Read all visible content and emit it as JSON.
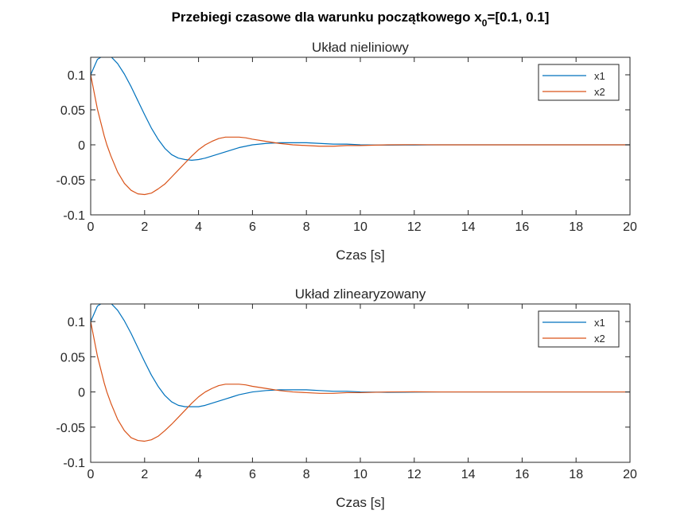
{
  "figure": {
    "title": "Przebiegi czasowe dla warunku początkowego x",
    "title_subscript": "0",
    "title_suffix": "=[0.1, 0.1]"
  },
  "colors": {
    "x1": "#0072BD",
    "x2": "#D95319",
    "axis": "#262626",
    "background": "#ffffff"
  },
  "chart_data": [
    {
      "type": "line",
      "title": "Układ nieliniowy",
      "xlabel": "Czas [s]",
      "ylabel": "",
      "xlim": [
        0,
        20
      ],
      "ylim": [
        -0.1,
        0.125
      ],
      "xticks": [
        0,
        2,
        4,
        6,
        8,
        10,
        12,
        14,
        16,
        18,
        20
      ],
      "xtick_labels": [
        "0",
        "2",
        "4",
        "6",
        "8",
        "10",
        "12",
        "14",
        "16",
        "18",
        "20"
      ],
      "yticks": [
        -0.1,
        -0.05,
        0,
        0.05,
        0.1
      ],
      "ytick_labels": [
        "-0.1",
        "-0.05",
        "0",
        "0.05",
        "0.1"
      ],
      "grid": false,
      "legend_position": "top-right",
      "x": [
        0,
        0.25,
        0.5,
        0.6,
        0.75,
        1,
        1.25,
        1.5,
        1.75,
        2,
        2.25,
        2.5,
        2.75,
        3,
        3.25,
        3.5,
        3.75,
        4,
        4.25,
        4.5,
        4.75,
        5,
        5.25,
        5.5,
        5.75,
        6,
        6.5,
        7,
        7.5,
        8,
        8.5,
        9,
        9.5,
        10,
        11,
        12,
        13,
        14,
        16,
        18,
        20
      ],
      "series": [
        {
          "name": "x1",
          "values": [
            0.1,
            0.122,
            0.128,
            0.128,
            0.126,
            0.116,
            0.101,
            0.083,
            0.063,
            0.043,
            0.024,
            0.008,
            -0.005,
            -0.014,
            -0.019,
            -0.021,
            -0.022,
            -0.021,
            -0.019,
            -0.016,
            -0.013,
            -0.01,
            -0.007,
            -0.004,
            -0.002,
            0.0,
            0.002,
            0.003,
            0.003,
            0.003,
            0.002,
            0.001,
            0.001,
            0.0,
            -0.0005,
            -0.0003,
            0.0,
            0.0,
            0.0,
            0.0,
            0.0
          ]
        },
        {
          "name": "x2",
          "values": [
            0.1,
            0.051,
            0.013,
            0.0,
            -0.016,
            -0.039,
            -0.055,
            -0.065,
            -0.07,
            -0.071,
            -0.069,
            -0.063,
            -0.056,
            -0.046,
            -0.036,
            -0.026,
            -0.016,
            -0.007,
            0.0,
            0.005,
            0.009,
            0.011,
            0.011,
            0.011,
            0.01,
            0.008,
            0.005,
            0.002,
            0.0,
            -0.001,
            -0.002,
            -0.002,
            -0.001,
            -0.001,
            0.0,
            0.0002,
            0.0,
            0.0,
            0.0,
            0.0,
            0.0
          ]
        }
      ]
    },
    {
      "type": "line",
      "title": "Układ zlinearyzowany",
      "xlabel": "Czas [s]",
      "ylabel": "",
      "xlim": [
        0,
        20
      ],
      "ylim": [
        -0.1,
        0.125
      ],
      "xticks": [
        0,
        2,
        4,
        6,
        8,
        10,
        12,
        14,
        16,
        18,
        20
      ],
      "xtick_labels": [
        "0",
        "2",
        "4",
        "6",
        "8",
        "10",
        "12",
        "14",
        "16",
        "18",
        "20"
      ],
      "yticks": [
        -0.1,
        -0.05,
        0,
        0.05,
        0.1
      ],
      "ytick_labels": [
        "-0.1",
        "-0.05",
        "0",
        "0.05",
        "0.1"
      ],
      "grid": false,
      "legend_position": "top-right",
      "x": [
        0,
        0.25,
        0.5,
        0.6,
        0.75,
        1,
        1.25,
        1.5,
        1.75,
        2,
        2.25,
        2.5,
        2.75,
        3,
        3.25,
        3.5,
        3.75,
        4,
        4.25,
        4.5,
        4.75,
        5,
        5.25,
        5.5,
        5.75,
        6,
        6.5,
        7,
        7.5,
        8,
        8.5,
        9,
        9.5,
        10,
        11,
        12,
        13,
        14,
        16,
        18,
        20
      ],
      "series": [
        {
          "name": "x1",
          "values": [
            0.1,
            0.122,
            0.128,
            0.128,
            0.126,
            0.116,
            0.101,
            0.083,
            0.063,
            0.043,
            0.024,
            0.008,
            -0.005,
            -0.014,
            -0.019,
            -0.021,
            -0.021,
            -0.021,
            -0.019,
            -0.016,
            -0.013,
            -0.01,
            -0.007,
            -0.004,
            -0.002,
            0.0,
            0.002,
            0.003,
            0.003,
            0.003,
            0.002,
            0.001,
            0.001,
            0.0,
            -0.0005,
            -0.0003,
            0.0,
            0.0,
            0.0,
            0.0,
            0.0
          ]
        },
        {
          "name": "x2",
          "values": [
            0.1,
            0.051,
            0.013,
            0.0,
            -0.016,
            -0.039,
            -0.055,
            -0.065,
            -0.069,
            -0.07,
            -0.068,
            -0.063,
            -0.055,
            -0.046,
            -0.036,
            -0.026,
            -0.016,
            -0.007,
            0.0,
            0.005,
            0.009,
            0.011,
            0.011,
            0.011,
            0.01,
            0.008,
            0.005,
            0.002,
            0.0,
            -0.001,
            -0.002,
            -0.002,
            -0.001,
            -0.001,
            0.0,
            0.0002,
            0.0,
            0.0,
            0.0,
            0.0,
            0.0
          ]
        }
      ]
    }
  ]
}
